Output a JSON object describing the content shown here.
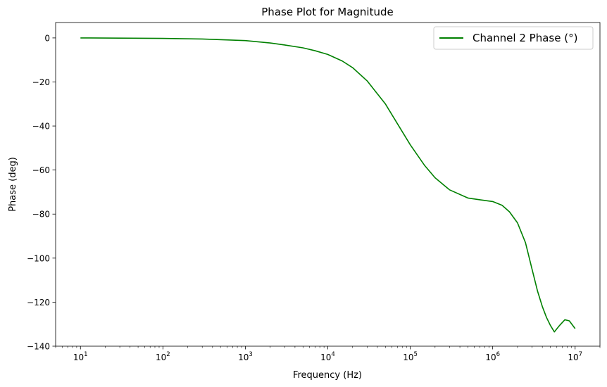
{
  "chart_data": {
    "type": "line",
    "title": "Phase Plot for Magnitude",
    "xlabel": "Frequency (Hz)",
    "ylabel": "Phase (deg)",
    "xscale": "log",
    "xlim": [
      5,
      20000000
    ],
    "ylim": [
      -140,
      7
    ],
    "x_ticks": [
      {
        "value": 10,
        "base": "10",
        "exp": "1"
      },
      {
        "value": 100,
        "base": "10",
        "exp": "2"
      },
      {
        "value": 1000,
        "base": "10",
        "exp": "3"
      },
      {
        "value": 10000,
        "base": "10",
        "exp": "4"
      },
      {
        "value": 100000,
        "base": "10",
        "exp": "5"
      },
      {
        "value": 1000000,
        "base": "10",
        "exp": "6"
      },
      {
        "value": 10000000,
        "base": "10",
        "exp": "7"
      }
    ],
    "y_ticks": [
      {
        "value": 0,
        "label": "0"
      },
      {
        "value": -20,
        "label": "−20"
      },
      {
        "value": -40,
        "label": "−40"
      },
      {
        "value": -60,
        "label": "−60"
      },
      {
        "value": -80,
        "label": "−80"
      },
      {
        "value": -100,
        "label": "−100"
      },
      {
        "value": -120,
        "label": "−120"
      },
      {
        "value": -140,
        "label": "−140"
      }
    ],
    "grid": false,
    "legend_position": "top-right",
    "series": [
      {
        "name": "Channel 2 Phase (°)",
        "color": "#008000",
        "x": [
          10,
          30,
          100,
          300,
          1000,
          2000,
          3000,
          5000,
          7000,
          10000,
          15000,
          20000,
          30000,
          50000,
          70000,
          100000,
          150000,
          200000,
          300000,
          500000,
          700000,
          1000000,
          1300000,
          1600000,
          2000000,
          2500000,
          3000000,
          3500000,
          4000000,
          4500000,
          5000000,
          5600000,
          6500000,
          7500000,
          8500000,
          10000000
        ],
        "y": [
          0,
          -0.1,
          -0.2,
          -0.5,
          -1.2,
          -2.3,
          -3.2,
          -4.5,
          -5.8,
          -7.5,
          -10.5,
          -13.5,
          -19.5,
          -30,
          -39,
          -48.5,
          -58,
          -63.5,
          -69,
          -72.7,
          -73.5,
          -74.3,
          -76,
          -79,
          -84,
          -93,
          -105,
          -115,
          -122,
          -127,
          -130.5,
          -133.5,
          -130.5,
          -128,
          -128.5,
          -132
        ]
      }
    ]
  }
}
